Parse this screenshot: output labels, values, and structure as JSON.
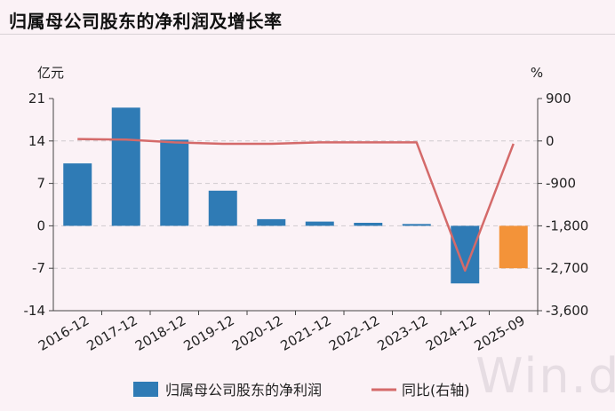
{
  "title": "归属母公司股东的净利润及增长率",
  "watermark": "Win.d",
  "chart_data": {
    "type": "bar",
    "categories": [
      "2016-12",
      "2017-12",
      "2018-12",
      "2019-12",
      "2020-12",
      "2021-12",
      "2022-12",
      "2023-12",
      "2024-12",
      "2025-09"
    ],
    "y_left": {
      "unit": "亿元",
      "range": [
        -14,
        21
      ],
      "ticks": [
        21,
        14,
        7,
        0,
        -7,
        -14
      ]
    },
    "y_right": {
      "unit": "%",
      "range": [
        -3600,
        900
      ],
      "ticks": [
        "900",
        "0",
        "-900",
        "-1,800",
        "-2,700",
        "-3,600"
      ],
      "tick_values": [
        900,
        0,
        -900,
        -1800,
        -2700,
        -3600
      ]
    },
    "grid": true,
    "legend_position": "bottom",
    "series": [
      {
        "name": "归属母公司股东的净利润",
        "type": "bar",
        "axis": "left",
        "color": "#2f7bb5",
        "highlight_color": "#f39339",
        "values": [
          10.3,
          19.5,
          14.2,
          5.8,
          1.1,
          0.7,
          0.5,
          0.3,
          -9.5,
          -7.0
        ]
      },
      {
        "name": "同比(右轴)",
        "type": "line",
        "axis": "right",
        "color": "#d46a6a",
        "values": [
          40,
          30,
          -30,
          -60,
          -60,
          -30,
          -30,
          -30,
          -2750,
          -60
        ]
      }
    ]
  }
}
